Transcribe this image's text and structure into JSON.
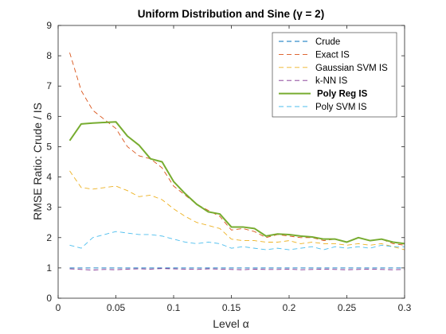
{
  "chart_data": {
    "type": "line",
    "title": "Uniform Distribution and Sine (γ = 2)",
    "xlabel": "Level α",
    "ylabel": "RMSE Ratio: Crude / IS",
    "xlim": [
      0,
      0.3
    ],
    "ylim": [
      0,
      9
    ],
    "xticks": [
      0,
      0.05,
      0.1,
      0.15,
      0.2,
      0.25,
      0.3
    ],
    "xtick_labels": [
      "0",
      "0.05",
      "0.1",
      "0.15",
      "0.2",
      "0.25",
      "0.3"
    ],
    "yticks": [
      0,
      1,
      2,
      3,
      4,
      5,
      6,
      7,
      8,
      9
    ],
    "ytick_labels": [
      "0",
      "1",
      "2",
      "3",
      "4",
      "5",
      "6",
      "7",
      "8",
      "9"
    ],
    "legend_position": "top-right",
    "x": [
      0.01,
      0.02,
      0.03,
      0.04,
      0.05,
      0.06,
      0.07,
      0.08,
      0.09,
      0.1,
      0.11,
      0.12,
      0.13,
      0.14,
      0.15,
      0.16,
      0.17,
      0.18,
      0.19,
      0.2,
      0.21,
      0.22,
      0.23,
      0.24,
      0.25,
      0.26,
      0.27,
      0.28,
      0.29,
      0.3
    ],
    "series": [
      {
        "name": "Crude",
        "color": "#0072bd",
        "style": "dashed",
        "bold": false,
        "values": [
          1.0,
          1.0,
          1.0,
          1.0,
          1.0,
          1.0,
          1.0,
          1.0,
          1.0,
          1.0,
          1.0,
          1.0,
          1.0,
          1.0,
          1.0,
          1.0,
          1.0,
          1.0,
          1.0,
          1.0,
          1.0,
          1.0,
          1.0,
          1.0,
          1.0,
          1.0,
          1.0,
          1.0,
          1.0,
          1.0
        ]
      },
      {
        "name": "Exact IS",
        "color": "#d95319",
        "style": "dashed",
        "bold": false,
        "values": [
          8.1,
          6.85,
          6.2,
          5.9,
          5.6,
          5.0,
          4.7,
          4.6,
          4.3,
          3.7,
          3.4,
          3.1,
          2.9,
          2.7,
          2.25,
          2.3,
          2.2,
          2.0,
          2.1,
          2.05,
          2.0,
          2.0,
          1.9,
          1.95,
          1.85,
          2.0,
          1.9,
          1.95,
          1.8,
          1.75
        ]
      },
      {
        "name": "Gaussian SVM IS",
        "color": "#edb120",
        "style": "dashed",
        "bold": false,
        "values": [
          4.2,
          3.65,
          3.6,
          3.65,
          3.7,
          3.55,
          3.35,
          3.4,
          3.25,
          2.95,
          2.7,
          2.5,
          2.4,
          2.3,
          1.95,
          1.9,
          1.9,
          1.85,
          1.85,
          1.9,
          1.8,
          1.85,
          1.8,
          1.8,
          1.75,
          1.8,
          1.75,
          1.8,
          1.7,
          1.6
        ]
      },
      {
        "name": "k-NN IS",
        "color": "#7e2f8e",
        "style": "dashed",
        "bold": false,
        "values": [
          0.97,
          0.95,
          0.93,
          0.95,
          0.94,
          0.96,
          0.97,
          0.96,
          0.98,
          0.97,
          0.96,
          0.95,
          0.97,
          0.96,
          0.95,
          0.94,
          0.96,
          0.95,
          0.95,
          0.96,
          0.94,
          0.95,
          0.96,
          0.95,
          0.94,
          0.95,
          0.96,
          0.95,
          0.94,
          0.95
        ]
      },
      {
        "name": "Poly Reg IS",
        "color": "#77ac30",
        "style": "solid",
        "bold": true,
        "values": [
          5.2,
          5.75,
          5.78,
          5.8,
          5.82,
          5.35,
          5.05,
          4.6,
          4.5,
          3.85,
          3.45,
          3.1,
          2.85,
          2.78,
          2.35,
          2.35,
          2.3,
          2.05,
          2.12,
          2.1,
          2.05,
          2.02,
          1.95,
          1.95,
          1.85,
          2.0,
          1.9,
          1.95,
          1.85,
          1.8
        ]
      },
      {
        "name": "Poly SVM IS",
        "color": "#4dbeee",
        "style": "dashed",
        "bold": false,
        "values": [
          1.75,
          1.65,
          2.0,
          2.1,
          2.2,
          2.15,
          2.1,
          2.1,
          2.05,
          1.95,
          1.85,
          1.8,
          1.85,
          1.8,
          1.65,
          1.7,
          1.65,
          1.6,
          1.65,
          1.6,
          1.65,
          1.7,
          1.6,
          1.7,
          1.65,
          1.7,
          1.65,
          1.75,
          1.7,
          1.7
        ]
      }
    ]
  }
}
